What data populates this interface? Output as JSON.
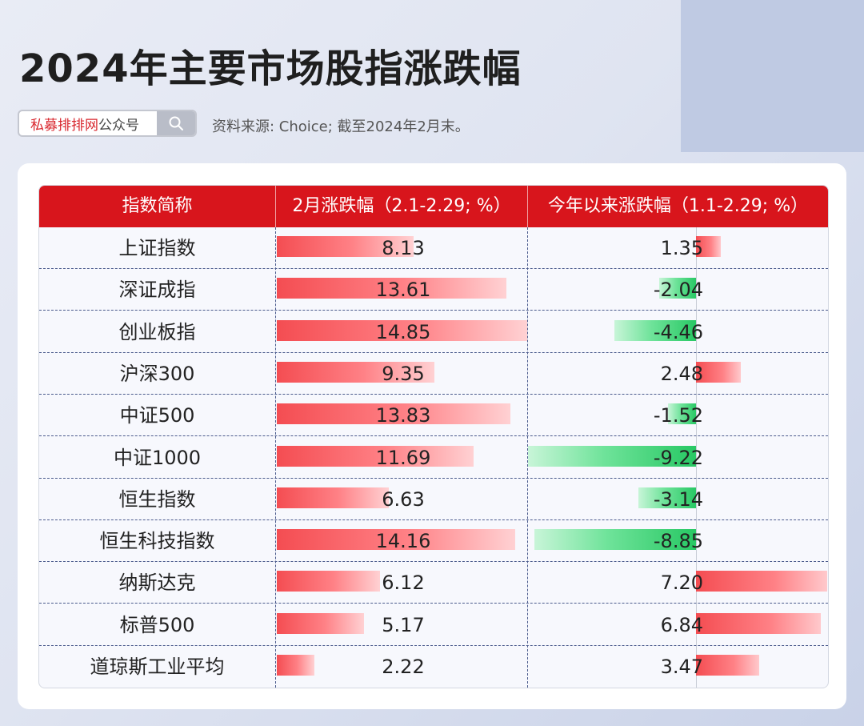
{
  "title": "2024年主要市场股指涨跌幅",
  "search": {
    "brand": "私募排排网",
    "suffix": "公众号"
  },
  "source": "资料来源: Choice; 截至2024年2月末。",
  "chart_data": {
    "type": "table",
    "columns": [
      "指数简称",
      "2月涨跌幅（2.1-2.29; %）",
      "今年以来涨跌幅（1.1-2.29; %）"
    ],
    "colors": {
      "header": "#d8151c",
      "positive": "#f44d52",
      "negative": "#28c864"
    },
    "rows": [
      {
        "name": "上证指数",
        "feb": "8.13",
        "ytd": "1.35"
      },
      {
        "name": "深证成指",
        "feb": "13.61",
        "ytd": "-2.04"
      },
      {
        "name": "创业板指",
        "feb": "14.85",
        "ytd": "-4.46"
      },
      {
        "name": "沪深300",
        "feb": "9.35",
        "ytd": "2.48"
      },
      {
        "name": "中证500",
        "feb": "13.83",
        "ytd": "-1.52"
      },
      {
        "name": "中证1000",
        "feb": "11.69",
        "ytd": "-9.22"
      },
      {
        "name": "恒生指数",
        "feb": "6.63",
        "ytd": "-3.14"
      },
      {
        "name": "恒生科技指数",
        "feb": "14.16",
        "ytd": "-8.85"
      },
      {
        "name": "纳斯达克",
        "feb": "6.12",
        "ytd": "7.20"
      },
      {
        "name": "标普500",
        "feb": "5.17",
        "ytd": "6.84"
      },
      {
        "name": "道琼斯工业平均",
        "feb": "2.22",
        "ytd": "3.47"
      }
    ]
  }
}
